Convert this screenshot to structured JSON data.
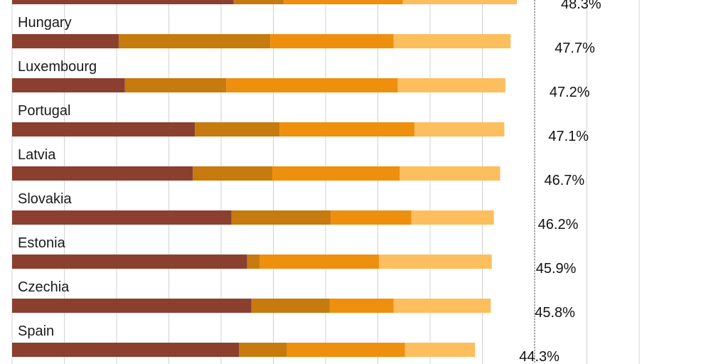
{
  "chart_data": {
    "type": "bar",
    "orientation": "horizontal",
    "stacked": true,
    "grid": true,
    "segment_colors": [
      "#8B3F2F",
      "#C77A0E",
      "#EE8F0E",
      "#FDBE5E"
    ],
    "reference_line_color": "#888888",
    "gridline_color": "#d0d0d0",
    "label_color": "#1a1a1a",
    "categories": [
      "",
      "Hungary",
      "Luxembourg",
      "Portugal",
      "Latvia",
      "Slovakia",
      "Estonia",
      "Czechia",
      "Spain"
    ],
    "segments": [
      [
        21.2,
        4.8,
        11.4,
        10.9
      ],
      [
        10.2,
        14.5,
        11.8,
        11.2
      ],
      [
        10.8,
        9.7,
        16.4,
        10.3
      ],
      [
        17.5,
        8.1,
        12.9,
        8.6
      ],
      [
        17.3,
        7.6,
        12.2,
        9.6
      ],
      [
        21.0,
        9.5,
        7.7,
        7.9
      ],
      [
        22.5,
        1.2,
        11.4,
        10.8
      ],
      [
        22.9,
        7.5,
        6.1,
        9.3
      ],
      [
        21.7,
        4.6,
        11.3,
        6.7
      ]
    ],
    "total_labels": [
      "48.3%",
      "47.7%",
      "47.2%",
      "47.1%",
      "46.7%",
      "46.2%",
      "45.9%",
      "45.8%",
      "44.3%"
    ],
    "xlim": [
      0,
      60
    ],
    "gridline_step": 5,
    "reference_value": 50
  }
}
